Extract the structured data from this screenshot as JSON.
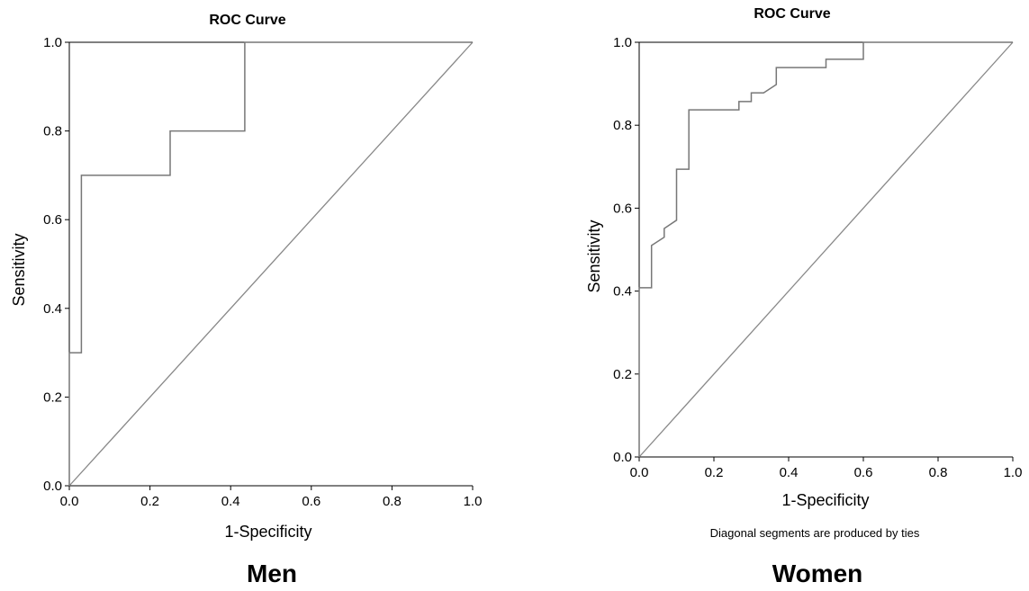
{
  "chart_data": [
    {
      "type": "line",
      "title": "ROC Curve",
      "xlabel": "1-Specificity",
      "ylabel": "Sensitivity",
      "group_label": "Men",
      "footnote": "",
      "xlim": [
        0,
        1
      ],
      "ylim": [
        0,
        1
      ],
      "x_ticks": [
        "0.0",
        "0.2",
        "0.4",
        "0.6",
        "0.8",
        "1.0"
      ],
      "y_ticks": [
        "0.0",
        "0.2",
        "0.4",
        "0.6",
        "0.8",
        "1.0"
      ],
      "grid": false,
      "series": [
        {
          "x": [
            0.0,
            0.0,
            0.03,
            0.03,
            0.25,
            0.25,
            0.435,
            0.435,
            1.0
          ],
          "y": [
            0.0,
            0.3,
            0.3,
            0.7,
            0.7,
            0.8,
            0.8,
            1.0,
            1.0
          ]
        },
        {
          "x": [
            0,
            1
          ],
          "y": [
            0,
            1
          ]
        }
      ]
    },
    {
      "type": "line",
      "title": "ROC Curve",
      "xlabel": "1-Specificity",
      "ylabel": "Sensitivity",
      "group_label": "Women",
      "footnote": "Diagonal segments are produced by ties",
      "xlim": [
        0,
        1
      ],
      "ylim": [
        0,
        1
      ],
      "x_ticks": [
        "0.0",
        "0.2",
        "0.4",
        "0.6",
        "0.8",
        "1.0"
      ],
      "y_ticks": [
        "0.0",
        "0.2",
        "0.4",
        "0.6",
        "0.8",
        "1.0"
      ],
      "grid": false,
      "series": [
        {
          "x": [
            0.0,
            0.0,
            0.033,
            0.033,
            0.067,
            0.067,
            0.1,
            0.1,
            0.133,
            0.133,
            0.267,
            0.267,
            0.3,
            0.3,
            0.333,
            0.367,
            0.367,
            0.5,
            0.5,
            0.6,
            0.6,
            1.0
          ],
          "y": [
            0.0,
            0.408,
            0.408,
            0.51,
            0.53,
            0.551,
            0.571,
            0.694,
            0.694,
            0.837,
            0.837,
            0.857,
            0.857,
            0.878,
            0.878,
            0.898,
            0.939,
            0.939,
            0.959,
            0.959,
            1.0,
            1.0
          ]
        },
        {
          "x": [
            0,
            1
          ],
          "y": [
            0,
            1
          ]
        }
      ]
    }
  ]
}
